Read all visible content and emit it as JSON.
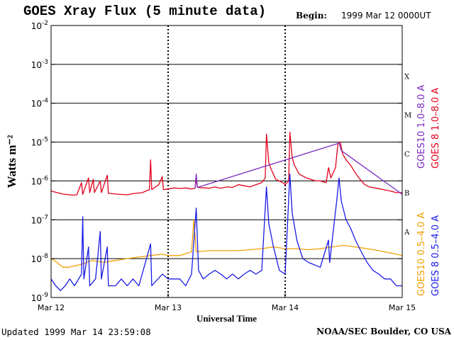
{
  "header": {
    "title": "GOES Xray Flux (5 minute data)",
    "begin_label": "Begin:",
    "begin_value": "1999 Mar 12 0000UT"
  },
  "footer": {
    "updated": "Updated 1999 Mar 14 23:59:08",
    "credit": "NOAA/SEC Boulder, CO USA"
  },
  "chart_data": {
    "type": "line",
    "title": "GOES Xray Flux (5 minute data)",
    "xlabel": "Universal Time",
    "ylabel": "Watts m⁻²",
    "yscale": "log",
    "ylim": [
      1e-09,
      0.01
    ],
    "x_unit": "days since 1999 Mar 12 00:00 UT",
    "xlim": [
      0,
      3
    ],
    "x_ticks": [
      {
        "x": 0,
        "label": "Mar 12"
      },
      {
        "x": 1,
        "label": "Mar 13"
      },
      {
        "x": 2,
        "label": "Mar 14"
      },
      {
        "x": 3,
        "label": "Mar 15"
      }
    ],
    "y_ticks": [
      {
        "exp": -2,
        "label": "10",
        "sup": "-2"
      },
      {
        "exp": -3,
        "label": "10",
        "sup": "-3"
      },
      {
        "exp": -4,
        "label": "10",
        "sup": "-4"
      },
      {
        "exp": -5,
        "label": "10",
        "sup": "-5"
      },
      {
        "exp": -6,
        "label": "10",
        "sup": "-6"
      },
      {
        "exp": -7,
        "label": "10",
        "sup": "-7"
      },
      {
        "exp": -8,
        "label": "10",
        "sup": "-8"
      },
      {
        "exp": -9,
        "label": "10",
        "sup": "-9"
      }
    ],
    "flare_classes": [
      {
        "label": "X",
        "value": 0.0005
      },
      {
        "label": "M",
        "value": 5e-05
      },
      {
        "label": "C",
        "value": 5e-06
      },
      {
        "label": "B",
        "value": 5e-07
      },
      {
        "label": "A",
        "value": 5e-08
      }
    ],
    "legend": [
      {
        "name": "GOES 8 1.0–8.0 A",
        "color": "#e3001b"
      },
      {
        "name": "GOES10 1.0–8.0 A",
        "color": "#7a2bc0"
      },
      {
        "name": "GOES 8 0.5–4.0 A",
        "color": "#1a1ae6"
      },
      {
        "name": "GOES10 0.5–4.0 A",
        "color": "#f2a000"
      }
    ],
    "grid": "horizontal gridlines at each decade",
    "series": [
      {
        "name": "GOES 8 1.0–8.0 A",
        "color": "#e3001b",
        "points": [
          [
            0.0,
            5.5e-07
          ],
          [
            0.05,
            5e-07
          ],
          [
            0.1,
            4.6e-07
          ],
          [
            0.18,
            4.3e-07
          ],
          [
            0.22,
            4.4e-07
          ],
          [
            0.26,
            9e-07
          ],
          [
            0.27,
            4.5e-07
          ],
          [
            0.32,
            1.2e-06
          ],
          [
            0.33,
            5e-07
          ],
          [
            0.36,
            1.1e-06
          ],
          [
            0.37,
            5e-07
          ],
          [
            0.42,
            1e-06
          ],
          [
            0.43,
            5e-07
          ],
          [
            0.48,
            1.4e-06
          ],
          [
            0.49,
            4.8e-07
          ],
          [
            0.55,
            4.6e-07
          ],
          [
            0.6,
            4.5e-07
          ],
          [
            0.65,
            4.4e-07
          ],
          [
            0.7,
            4.7e-07
          ],
          [
            0.78,
            5e-07
          ],
          [
            0.84,
            6e-07
          ],
          [
            0.85,
            3.5e-06
          ],
          [
            0.86,
            6e-07
          ],
          [
            0.92,
            8e-07
          ],
          [
            0.95,
            1.3e-06
          ],
          [
            0.96,
            6e-07
          ],
          [
            1.0,
            6.2e-07
          ],
          [
            1.05,
            6.6e-07
          ],
          [
            1.1,
            6.4e-07
          ],
          [
            1.15,
            6.6e-07
          ],
          [
            1.2,
            6.2e-07
          ],
          [
            1.23,
            6.5e-07
          ],
          [
            1.24,
            1.1e-06
          ],
          [
            1.25,
            6.8e-07
          ],
          [
            1.35,
            6.5e-07
          ],
          [
            1.4,
            7e-07
          ],
          [
            1.45,
            6.5e-07
          ],
          [
            1.5,
            7e-07
          ],
          [
            1.55,
            6.8e-07
          ],
          [
            1.6,
            8e-07
          ],
          [
            1.65,
            7.5e-07
          ],
          [
            1.7,
            7e-07
          ],
          [
            1.75,
            8e-07
          ],
          [
            1.8,
            9e-07
          ],
          [
            1.83,
            1.2e-06
          ],
          [
            1.84,
            1.6e-05
          ],
          [
            1.86,
            3e-06
          ],
          [
            1.88,
            2e-06
          ],
          [
            1.92,
            1.1e-06
          ],
          [
            1.98,
            9e-07
          ],
          [
            2.0,
            8e-07
          ],
          [
            2.03,
            1e-06
          ],
          [
            2.04,
            1.8e-05
          ],
          [
            2.06,
            4e-06
          ],
          [
            2.08,
            2.5e-06
          ],
          [
            2.12,
            1.5e-06
          ],
          [
            2.18,
            1.2e-06
          ],
          [
            2.22,
            1.1e-06
          ],
          [
            2.26,
            1e-06
          ],
          [
            2.3,
            1e-06
          ],
          [
            2.35,
            9e-07
          ],
          [
            2.37,
            2.2e-06
          ],
          [
            2.39,
            1.2e-06
          ],
          [
            2.43,
            2.2e-06
          ],
          [
            2.45,
            9e-06
          ],
          [
            2.47,
            1e-05
          ],
          [
            2.49,
            5e-06
          ],
          [
            2.52,
            3.5e-06
          ],
          [
            2.56,
            2.5e-06
          ],
          [
            2.6,
            1.6e-06
          ],
          [
            2.64,
            1.1e-06
          ],
          [
            2.68,
            8e-07
          ],
          [
            2.72,
            7e-07
          ],
          [
            2.78,
            6.5e-07
          ],
          [
            2.84,
            6e-07
          ],
          [
            2.9,
            5.5e-07
          ],
          [
            2.95,
            5e-07
          ],
          [
            3.0,
            5e-07
          ]
        ]
      },
      {
        "name": "GOES10 1.0–8.0 A",
        "color": "#7a2bc0",
        "points": [
          [
            1.23,
            6.5e-07
          ],
          [
            1.24,
            1.5e-06
          ],
          [
            1.25,
            6.8e-07
          ],
          [
            2.44,
            9e-06
          ],
          [
            2.46,
            9.5e-06
          ],
          [
            2.48,
            6e-06
          ],
          [
            2.98,
            5e-07
          ],
          [
            3.0,
            4.5e-07
          ]
        ]
      },
      {
        "name": "GOES10 0.5–4.0 A",
        "color": "#f2a000",
        "points": [
          [
            0.0,
            1e-08
          ],
          [
            0.05,
            8e-09
          ],
          [
            0.1,
            6e-09
          ],
          [
            0.15,
            6e-09
          ],
          [
            0.25,
            7e-09
          ],
          [
            0.35,
            9e-09
          ],
          [
            0.45,
            8e-09
          ],
          [
            0.55,
            9e-09
          ],
          [
            0.65,
            1e-08
          ],
          [
            0.75,
            1.1e-08
          ],
          [
            0.85,
            1.2e-08
          ],
          [
            0.95,
            1.3e-08
          ],
          [
            1.0,
            1.2e-08
          ],
          [
            1.1,
            1.2e-08
          ],
          [
            1.2,
            1.5e-08
          ],
          [
            1.22,
            1e-07
          ],
          [
            1.24,
            1.5e-08
          ],
          [
            1.35,
            1.6e-08
          ],
          [
            1.5,
            1.6e-08
          ],
          [
            1.6,
            1.6e-08
          ],
          [
            1.7,
            1.7e-08
          ],
          [
            1.8,
            1.8e-08
          ],
          [
            1.9,
            2e-08
          ],
          [
            2.0,
            1.8e-08
          ],
          [
            2.1,
            1.8e-08
          ],
          [
            2.2,
            1.7e-08
          ],
          [
            2.3,
            1.8e-08
          ],
          [
            2.4,
            2e-08
          ],
          [
            2.5,
            2.2e-08
          ],
          [
            2.6,
            2e-08
          ],
          [
            2.7,
            1.8e-08
          ],
          [
            2.8,
            1.6e-08
          ],
          [
            2.9,
            1.4e-08
          ],
          [
            3.0,
            1.2e-08
          ]
        ]
      },
      {
        "name": "GOES 8 0.5–4.0 A",
        "color": "#1a1ae6",
        "points": [
          [
            0.0,
            3e-09
          ],
          [
            0.04,
            2e-09
          ],
          [
            0.08,
            1.5e-09
          ],
          [
            0.12,
            2e-09
          ],
          [
            0.16,
            3e-09
          ],
          [
            0.2,
            2e-09
          ],
          [
            0.26,
            4e-09
          ],
          [
            0.27,
            1.2e-07
          ],
          [
            0.28,
            3e-09
          ],
          [
            0.32,
            2e-08
          ],
          [
            0.33,
            2e-09
          ],
          [
            0.38,
            3e-09
          ],
          [
            0.42,
            5e-08
          ],
          [
            0.43,
            3e-09
          ],
          [
            0.48,
            2e-08
          ],
          [
            0.49,
            2e-09
          ],
          [
            0.55,
            2e-09
          ],
          [
            0.6,
            3e-09
          ],
          [
            0.65,
            2e-09
          ],
          [
            0.7,
            3e-09
          ],
          [
            0.75,
            2e-09
          ],
          [
            0.85,
            2.4e-08
          ],
          [
            0.86,
            2e-09
          ],
          [
            0.95,
            4e-09
          ],
          [
            1.0,
            3e-09
          ],
          [
            1.05,
            3e-09
          ],
          [
            1.1,
            3e-09
          ],
          [
            1.15,
            2e-09
          ],
          [
            1.2,
            4e-09
          ],
          [
            1.24,
            2e-07
          ],
          [
            1.26,
            5e-09
          ],
          [
            1.3,
            3e-09
          ],
          [
            1.35,
            4e-09
          ],
          [
            1.4,
            5e-09
          ],
          [
            1.45,
            4e-09
          ],
          [
            1.5,
            3e-09
          ],
          [
            1.55,
            4e-09
          ],
          [
            1.6,
            3e-09
          ],
          [
            1.65,
            4e-09
          ],
          [
            1.7,
            5e-09
          ],
          [
            1.75,
            4e-09
          ],
          [
            1.8,
            5e-09
          ],
          [
            1.84,
            7e-07
          ],
          [
            1.86,
            8e-08
          ],
          [
            1.9,
            2e-08
          ],
          [
            1.95,
            5e-09
          ],
          [
            2.0,
            4e-09
          ],
          [
            2.04,
            1.5e-06
          ],
          [
            2.06,
            1.5e-07
          ],
          [
            2.1,
            3e-08
          ],
          [
            2.15,
            1e-08
          ],
          [
            2.2,
            8e-09
          ],
          [
            2.3,
            6e-09
          ],
          [
            2.37,
            3e-08
          ],
          [
            2.38,
            8e-09
          ],
          [
            2.44,
            3e-07
          ],
          [
            2.46,
            1.2e-06
          ],
          [
            2.48,
            3e-07
          ],
          [
            2.52,
            1e-07
          ],
          [
            2.56,
            6e-08
          ],
          [
            2.6,
            3e-08
          ],
          [
            2.65,
            1.5e-08
          ],
          [
            2.7,
            8e-09
          ],
          [
            2.75,
            5e-09
          ],
          [
            2.8,
            4e-09
          ],
          [
            2.85,
            3e-09
          ],
          [
            2.9,
            3e-09
          ],
          [
            2.95,
            2e-09
          ],
          [
            3.0,
            2e-09
          ]
        ]
      }
    ]
  }
}
